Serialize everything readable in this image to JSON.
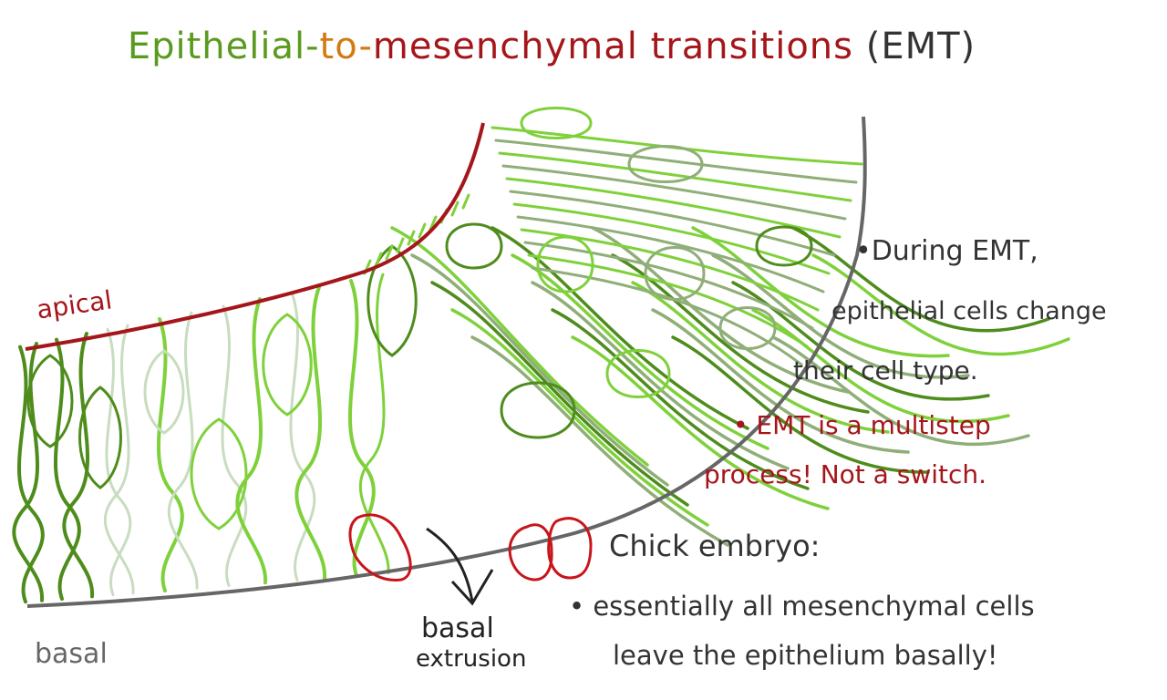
{
  "title": {
    "part1": "Epithelial-",
    "part2": "to-",
    "part3": "mesenchymal transitions ",
    "part4": "(EMT)"
  },
  "labels": {
    "apical": "apical",
    "basal": "basal",
    "extrusion_line1": "basal",
    "extrusion_line2": "extrusion"
  },
  "notes": {
    "during_emt_1": "•During EMT,",
    "during_emt_2": "epithelial cells change",
    "during_emt_3": "their cell type.",
    "multistep_1": "• EMT is a multistep",
    "multistep_2": "process!  Not a switch.",
    "chick_title": "Chick embryo:",
    "chick_1": "• essentially all mesenchymal cells",
    "chick_2": "leave the epithelium basally!"
  },
  "colors": {
    "apical_line": "#a5161b",
    "basal_line": "#666666",
    "cell_dark_green": "#4e8c1c",
    "cell_light_green": "#7fd13b",
    "cell_pale_green": "#c8dcc0",
    "cell_grey_green": "#8fae78",
    "extruded_cell": "#c8141b",
    "arrow": "#222222"
  }
}
